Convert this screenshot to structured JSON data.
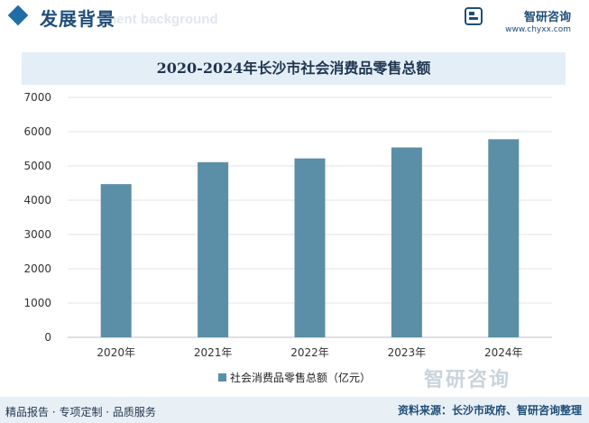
{
  "header": {
    "section_title": "发展背景",
    "section_subtitle": "nent background",
    "brand_name": "智研咨询",
    "brand_url": "www.chyxx.com"
  },
  "footer": {
    "left": "精品报告 · 专项定制 · 品质服务",
    "right": "资料来源：长沙市政府、智研咨询整理",
    "brand": "智研咨询"
  },
  "colors": {
    "bar": "#5b8fa8",
    "title_band": "#e4eef6",
    "accent": "#1f4e79"
  },
  "chart_data": {
    "type": "bar",
    "title": "2020-2024年长沙市社会消费品零售总额",
    "categories": [
      "2020年",
      "2021年",
      "2022年",
      "2023年",
      "2024年"
    ],
    "series": [
      {
        "name": "社会消费品零售总额（亿元）",
        "values": [
          4470,
          5110,
          5220,
          5540,
          5780
        ]
      }
    ],
    "ylim": [
      0,
      7000
    ],
    "yticks": [
      0,
      1000,
      2000,
      3000,
      4000,
      5000,
      6000,
      7000
    ],
    "ytick_labels": [
      "0",
      "1000",
      "2000",
      "3000",
      "4000",
      "5000",
      "6000",
      "7000"
    ],
    "grid": true,
    "legend": "bottom"
  }
}
